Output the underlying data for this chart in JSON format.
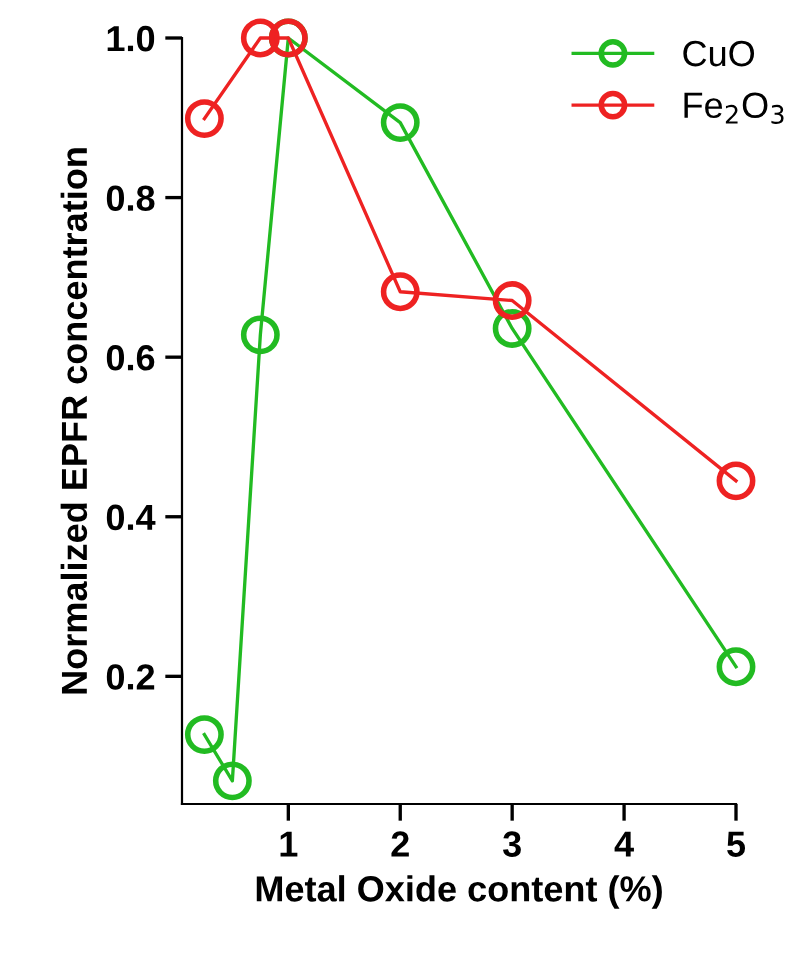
{
  "chart_data": {
    "type": "line",
    "xlabel": "Metal Oxide content (%)",
    "ylabel": "Normalized EPFR concentration",
    "xlim": [
      0.05,
      5
    ],
    "ylim": [
      0.04,
      1.0
    ],
    "xticks": [
      1,
      2,
      3,
      4,
      5
    ],
    "yticks": [
      {
        "value": 0.2,
        "label": "0.2"
      },
      {
        "value": 0.4,
        "label": "0.4"
      },
      {
        "value": 0.6,
        "label": "0.6"
      },
      {
        "value": 0.8,
        "label": "0.8"
      },
      {
        "value": 1.0,
        "label": "1.0"
      }
    ],
    "marker": "circle",
    "line_style": "solid",
    "grid": false,
    "legend": "top right",
    "series": [
      {
        "name": "CuO",
        "color": "#22bb22",
        "x": [
          0.25,
          0.5,
          0.75,
          1,
          2,
          3,
          5
        ],
        "values": [
          0.127,
          0.069,
          0.628,
          1.0,
          0.894,
          0.636,
          0.212
        ]
      },
      {
        "name": "Fe$_{2}$O$_{3}$",
        "color": "#ee2222",
        "x": [
          0.25,
          0.75,
          1,
          2,
          3,
          5
        ],
        "values": [
          0.899,
          1.0,
          1.0,
          0.682,
          0.671,
          0.445
        ]
      }
    ]
  }
}
